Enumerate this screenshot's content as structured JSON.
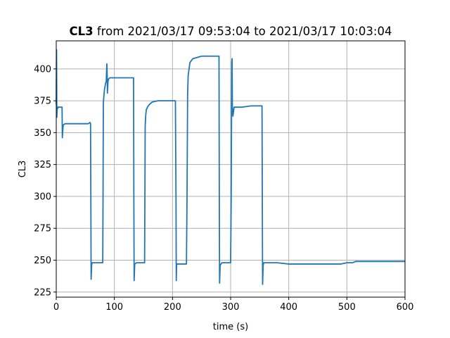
{
  "chart_data": {
    "type": "line",
    "title_bold": "CL3",
    "title_rest": " from 2021/03/17 09:53:04 to 2021/03/17 10:03:04",
    "xlabel": "time (s)",
    "ylabel": "CL3",
    "xlim": [
      0,
      600
    ],
    "ylim": [
      221,
      422
    ],
    "xticks": [
      0,
      100,
      200,
      300,
      400,
      500,
      600
    ],
    "yticks": [
      225,
      250,
      275,
      300,
      325,
      350,
      375,
      400
    ],
    "grid": true,
    "line_color": "#1f77b4",
    "series": [
      {
        "x": [
          0,
          0.5,
          1,
          1.5,
          2,
          2.5,
          3,
          5,
          8,
          10,
          10.5,
          11,
          12,
          15,
          25,
          40,
          55,
          58,
          59,
          59.5,
          60,
          61,
          62,
          65,
          75,
          80,
          80.5,
          81,
          82,
          83,
          85,
          86,
          87,
          87.5,
          88,
          89,
          90,
          92,
          100,
          120,
          133,
          133.5,
          134,
          135,
          138,
          145,
          152,
          152.5,
          153,
          154,
          155,
          157,
          160,
          165,
          175,
          195,
          205,
          206,
          206.5,
          207,
          208,
          215,
          224,
          225,
          226,
          227,
          230,
          235,
          250,
          270,
          280,
          280.5,
          281,
          282,
          285,
          295,
          300,
          301,
          302,
          302.5,
          303,
          304,
          306,
          310,
          320,
          335,
          350,
          354,
          354.5,
          355,
          356,
          357,
          360,
          380,
          400,
          430,
          460,
          480,
          490,
          500,
          505,
          510,
          515,
          520,
          540,
          560,
          580,
          600
        ],
        "y": [
          372,
          415,
          362,
          368,
          370,
          369,
          370,
          370,
          370,
          370,
          346,
          350,
          356,
          357,
          357,
          357,
          357,
          358,
          357,
          300,
          235,
          247,
          248,
          248,
          248,
          248,
          300,
          373,
          379,
          384,
          389,
          390,
          404,
          398,
          381,
          390,
          392,
          393,
          393,
          393,
          393,
          300,
          234,
          247,
          248,
          248,
          248,
          300,
          355,
          364,
          368,
          370,
          372,
          374,
          375,
          375,
          375,
          300,
          234,
          246,
          247,
          247,
          247,
          300,
          380,
          395,
          405,
          408,
          410,
          410,
          410,
          300,
          232,
          246,
          248,
          248,
          248,
          300,
          405,
          408,
          370,
          363,
          370,
          370,
          370,
          371,
          371,
          371,
          300,
          231,
          246,
          248,
          248,
          248,
          247,
          247,
          247,
          247,
          247,
          248,
          248,
          248,
          249,
          249,
          249,
          249,
          249,
          249
        ]
      }
    ]
  }
}
